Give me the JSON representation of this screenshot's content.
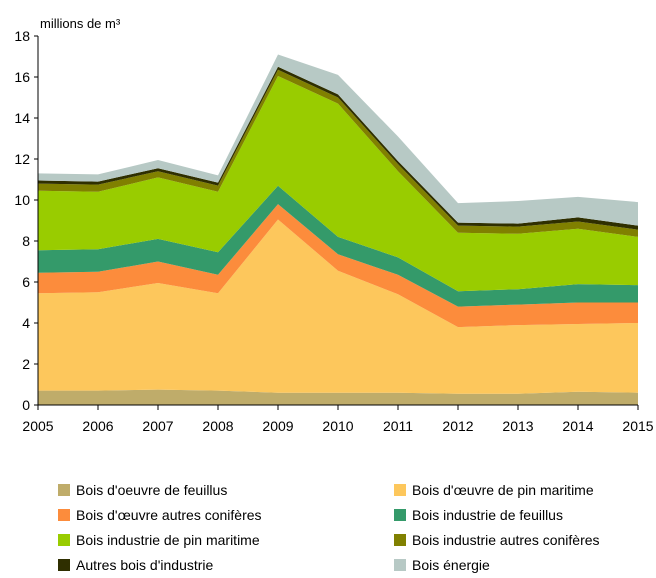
{
  "chart_data": {
    "type": "area",
    "stacked": true,
    "ylabel": "millions de m³",
    "ylim": [
      0,
      18
    ],
    "yticks": [
      0,
      2,
      4,
      6,
      8,
      10,
      12,
      14,
      16,
      18
    ],
    "x": [
      2005,
      2006,
      2007,
      2008,
      2009,
      2010,
      2011,
      2012,
      2013,
      2014,
      2015
    ],
    "grid": false,
    "legend_position": "bottom",
    "series": [
      {
        "name": "Bois d'oeuvre de feuillus",
        "color": "#bfac6a",
        "values": [
          0.7,
          0.7,
          0.75,
          0.7,
          0.6,
          0.6,
          0.6,
          0.55,
          0.55,
          0.65,
          0.6
        ]
      },
      {
        "name": "Bois d'œuvre de pin maritime",
        "color": "#fdc75c",
        "values": [
          4.75,
          4.8,
          5.2,
          4.75,
          8.45,
          5.95,
          4.8,
          3.25,
          3.35,
          3.3,
          3.4
        ]
      },
      {
        "name": "Bois d'œuvre autres conifères",
        "color": "#fc8c3c",
        "values": [
          1.0,
          1.0,
          1.05,
          0.9,
          0.75,
          0.8,
          0.95,
          1.0,
          1.0,
          1.05,
          1.0
        ]
      },
      {
        "name": "Bois industrie de feuillus",
        "color": "#349a6a",
        "values": [
          1.1,
          1.1,
          1.1,
          1.1,
          0.9,
          0.85,
          0.85,
          0.75,
          0.75,
          0.9,
          0.85
        ]
      },
      {
        "name": "Bois industrie de pin maritime",
        "color": "#99cc00",
        "values": [
          2.9,
          2.8,
          3.0,
          2.95,
          5.35,
          6.5,
          4.2,
          2.85,
          2.7,
          2.7,
          2.35
        ]
      },
      {
        "name": "Bois industrie autres conifères",
        "color": "#808000",
        "values": [
          0.35,
          0.35,
          0.3,
          0.3,
          0.3,
          0.3,
          0.35,
          0.35,
          0.35,
          0.35,
          0.35
        ]
      },
      {
        "name": "Autres bois d'industrie",
        "color": "#2f2f00",
        "values": [
          0.15,
          0.15,
          0.15,
          0.15,
          0.15,
          0.15,
          0.15,
          0.15,
          0.15,
          0.2,
          0.2
        ]
      },
      {
        "name": "Bois énergie",
        "color": "#b7c9c5",
        "values": [
          0.35,
          0.35,
          0.4,
          0.35,
          0.6,
          0.95,
          1.2,
          0.95,
          1.1,
          1.0,
          1.15
        ]
      }
    ],
    "legend": [
      {
        "label": "Bois d'oeuvre de feuillus",
        "color": "#bfac6a"
      },
      {
        "label": "Bois d'œuvre de pin maritime",
        "color": "#fdc75c"
      },
      {
        "label": "Bois d'œuvre autres conifères",
        "color": "#fc8c3c"
      },
      {
        "label": "Bois industrie de feuillus",
        "color": "#349a6a"
      },
      {
        "label": "Bois industrie de pin maritime",
        "color": "#99cc00"
      },
      {
        "label": "Bois industrie autres conifères",
        "color": "#808000"
      },
      {
        "label": "Autres bois d'industrie",
        "color": "#2f2f00"
      },
      {
        "label": "Bois énergie",
        "color": "#b7c9c5"
      }
    ]
  }
}
